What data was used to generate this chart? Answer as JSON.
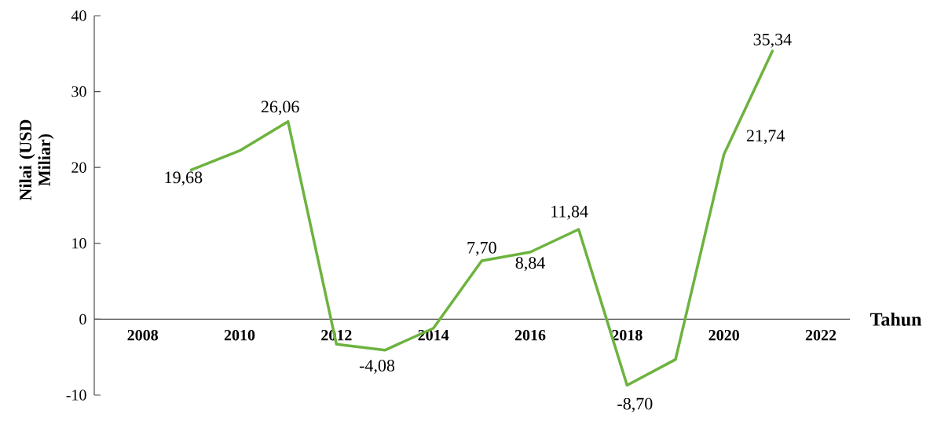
{
  "chart_data": {
    "type": "line",
    "xlabel": "Tahun",
    "ylabel": "Nilai (USD Miliar)",
    "x": [
      2009,
      2010,
      2011,
      2012,
      2013,
      2014,
      2015,
      2016,
      2017,
      2018,
      2019,
      2020,
      2021
    ],
    "series": [
      {
        "color": "#6db33f",
        "line_style": "solid",
        "values": [
          19.68,
          22.2,
          26.06,
          -3.3,
          -4.08,
          -1.2,
          7.7,
          8.84,
          11.84,
          -8.7,
          -5.3,
          21.74,
          35.34
        ],
        "value_labels": [
          "19,68",
          null,
          "26,06",
          null,
          "-4,08",
          null,
          "7,70",
          "8,84",
          "11,84",
          "-8,70",
          null,
          "21,74",
          "35,34"
        ]
      }
    ],
    "xlim": [
      2007,
      2022.6
    ],
    "xticks": [
      2008,
      2010,
      2012,
      2014,
      2016,
      2018,
      2020,
      2022
    ],
    "ylim": [
      -10,
      40
    ],
    "yticks": [
      -10,
      0,
      10,
      20,
      30,
      40
    ]
  }
}
